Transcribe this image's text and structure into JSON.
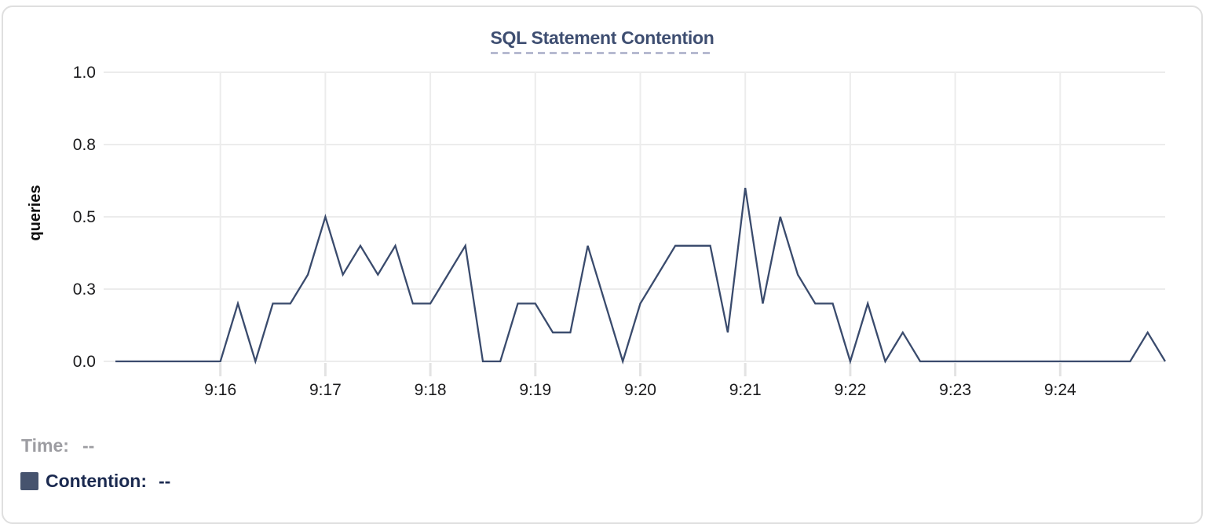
{
  "card": {
    "title": "SQL Statement Contention"
  },
  "legend": {
    "time_label": "Time:",
    "time_value": "--",
    "contention_label": "Contention:",
    "contention_value": "--"
  },
  "colors": {
    "title": "#3e4e71",
    "title_underline": "#b6bad0",
    "line": "#3a4b6d",
    "swatch": "#46536e",
    "grid": "#ececec",
    "tick_mark": "#e3e3e3",
    "axis_text": "#1c1c1e",
    "axis_title_text": "#101010",
    "time_text": "#9d9da2",
    "contention_text": "#1b2a50",
    "card_border": "#dfdfdf",
    "background": "#ffffff"
  },
  "chart_data": {
    "type": "line",
    "title": "SQL Statement Contention",
    "xlabel": "",
    "ylabel": "queries",
    "ylim": [
      0,
      1
    ],
    "x_range": [
      "9:15:00",
      "9:25:00"
    ],
    "grid": true,
    "legend_position": "bottom-left",
    "y_ticks": [
      {
        "label": "1.0",
        "value": 1
      },
      {
        "label": "0.8",
        "value": 0.75
      },
      {
        "label": "0.5",
        "value": 0.5
      },
      {
        "label": "0.3",
        "value": 0.25
      },
      {
        "label": "0.0",
        "value": 0
      }
    ],
    "x_ticks": [
      {
        "label": "9:16",
        "time": "9:16:00"
      },
      {
        "label": "9:17",
        "time": "9:17:00"
      },
      {
        "label": "9:18",
        "time": "9:18:00"
      },
      {
        "label": "9:19",
        "time": "9:19:00"
      },
      {
        "label": "9:20",
        "time": "9:20:00"
      },
      {
        "label": "9:21",
        "time": "9:21:00"
      },
      {
        "label": "9:22",
        "time": "9:22:00"
      },
      {
        "label": "9:23",
        "time": "9:23:00"
      },
      {
        "label": "9:24",
        "time": "9:24:00"
      }
    ],
    "series": [
      {
        "name": "Contention",
        "times": [
          "9:15:00",
          "9:15:10",
          "9:15:20",
          "9:15:30",
          "9:15:40",
          "9:15:50",
          "9:16:00",
          "9:16:10",
          "9:16:20",
          "9:16:30",
          "9:16:40",
          "9:16:50",
          "9:17:00",
          "9:17:10",
          "9:17:20",
          "9:17:30",
          "9:17:40",
          "9:17:50",
          "9:18:00",
          "9:18:10",
          "9:18:20",
          "9:18:30",
          "9:18:40",
          "9:18:50",
          "9:19:00",
          "9:19:10",
          "9:19:20",
          "9:19:30",
          "9:19:40",
          "9:19:50",
          "9:20:00",
          "9:20:10",
          "9:20:20",
          "9:20:30",
          "9:20:40",
          "9:20:50",
          "9:21:00",
          "9:21:10",
          "9:21:20",
          "9:21:30",
          "9:21:40",
          "9:21:50",
          "9:22:00",
          "9:22:10",
          "9:22:20",
          "9:22:30",
          "9:22:40",
          "9:22:50",
          "9:23:00",
          "9:23:10",
          "9:23:20",
          "9:23:30",
          "9:23:40",
          "9:23:50",
          "9:24:00",
          "9:24:10",
          "9:24:20",
          "9:24:30",
          "9:24:40",
          "9:24:50",
          "9:25:00"
        ],
        "values": [
          0,
          0,
          0,
          0,
          0,
          0,
          0,
          0.2,
          0,
          0.2,
          0.2,
          0.3,
          0.5,
          0.3,
          0.4,
          0.3,
          0.4,
          0.2,
          0.2,
          0.3,
          0.4,
          0,
          0,
          0.2,
          0.2,
          0.1,
          0.1,
          0.4,
          0.2,
          0,
          0.2,
          0.3,
          0.4,
          0.4,
          0.4,
          0.1,
          0.6,
          0.2,
          0.5,
          0.3,
          0.2,
          0.2,
          0,
          0.2,
          0,
          0.1,
          0,
          0,
          0,
          0,
          0,
          0,
          0,
          0,
          0,
          0,
          0,
          0,
          0,
          0.1,
          0
        ]
      }
    ]
  }
}
